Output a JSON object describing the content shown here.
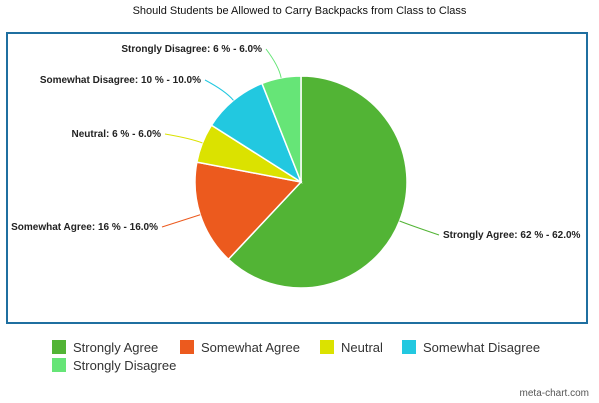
{
  "chart_data": {
    "type": "pie",
    "title": "Should Students be Allowed to Carry Backpacks from Class to Class",
    "slices": [
      {
        "name": "Strongly Agree",
        "value": 62,
        "label": "Strongly Agree: 62 % - 62.0%",
        "color": "#52b435"
      },
      {
        "name": "Somewhat Agree",
        "value": 16,
        "label": "Somewhat Agree: 16 % - 16.0%",
        "color": "#ec5a1e"
      },
      {
        "name": "Neutral",
        "value": 6,
        "label": "Neutral: 6 % - 6.0%",
        "color": "#dbe200"
      },
      {
        "name": "Somewhat Disagree",
        "value": 10,
        "label": "Somewhat Disagree: 10 % - 10.0%",
        "color": "#22c8e0"
      },
      {
        "name": "Strongly Disagree",
        "value": 6,
        "label": "Strongly Disagree: 6 % - 6.0%",
        "color": "#66e577"
      }
    ],
    "legend_position": "bottom",
    "frame_color": "#1f6fa0"
  },
  "watermark": "meta-chart.com"
}
